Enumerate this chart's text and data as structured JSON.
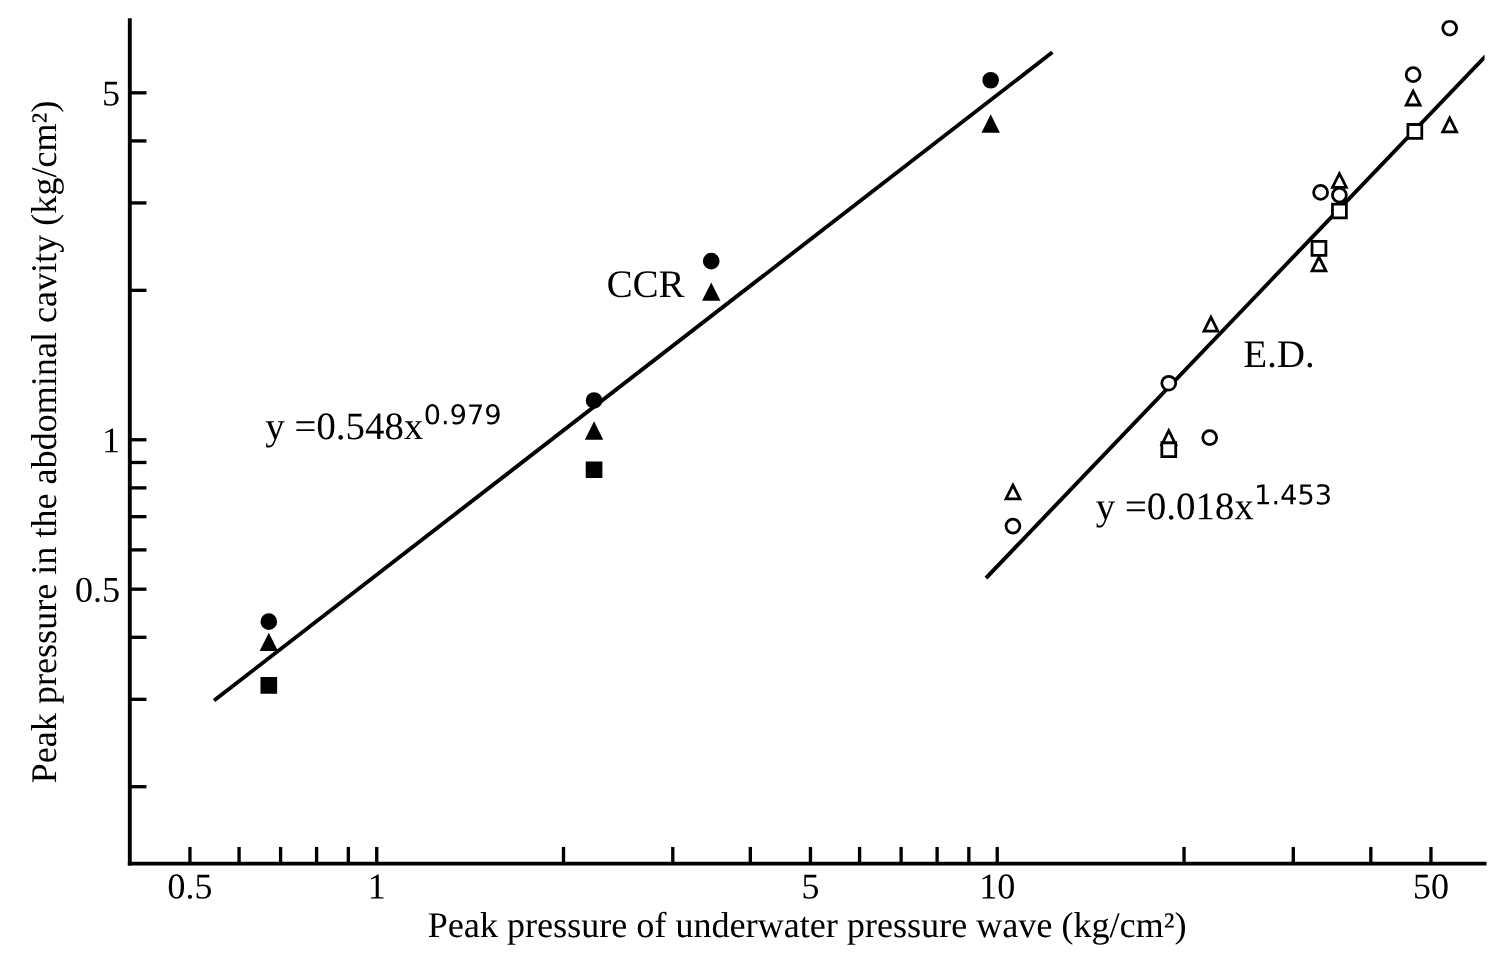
{
  "chart_data": {
    "type": "scatter",
    "xlabel": "Peak pressure of underwater pressure wave (kg/cm²)",
    "ylabel": "Peak pressure in the abdominal cavity (kg/cm²)",
    "log": "xy",
    "grid": false,
    "legend": false,
    "xlim": [
      0.4,
      61
    ],
    "ylim": [
      0.14,
      7.0
    ],
    "xticks": [
      0.5,
      {
        "value": 0.6,
        "label": null
      },
      {
        "value": 0.7,
        "label": null
      },
      {
        "value": 0.8,
        "label": null
      },
      {
        "value": 0.9,
        "label": null
      },
      1,
      {
        "value": 2,
        "label": null
      },
      {
        "value": 3,
        "label": null
      },
      {
        "value": 4,
        "label": null
      },
      5,
      {
        "value": 6,
        "label": null
      },
      {
        "value": 7,
        "label": null
      },
      {
        "value": 8,
        "label": null
      },
      {
        "value": 9,
        "label": null
      },
      10,
      {
        "value": 20,
        "label": null
      },
      {
        "value": 30,
        "label": null
      },
      {
        "value": 40,
        "label": null
      },
      50
    ],
    "yticks": [
      {
        "value": 0.2,
        "label": null
      },
      {
        "value": 0.3,
        "label": null
      },
      {
        "value": 0.4,
        "label": null
      },
      0.5,
      {
        "value": 0.6,
        "label": null
      },
      {
        "value": 0.7,
        "label": null
      },
      {
        "value": 0.8,
        "label": null
      },
      {
        "value": 0.9,
        "label": null
      },
      1,
      {
        "value": 2,
        "label": null
      },
      {
        "value": 3,
        "label": null
      },
      {
        "value": 4,
        "label": null
      },
      5
    ],
    "series": [
      {
        "marker": "circle",
        "color": "#000000",
        "x": [
          0.67,
          2.24,
          3.46,
          9.76
        ],
        "values": [
          0.43,
          1.2,
          2.29,
          5.3
        ]
      },
      {
        "marker": "triangle",
        "color": "#000000",
        "x": [
          0.67,
          2.24,
          3.46,
          9.76
        ],
        "values": [
          0.39,
          1.04,
          1.98,
          4.32
        ]
      },
      {
        "marker": "square",
        "color": "#000000",
        "x": [
          0.67,
          2.24
        ],
        "values": [
          0.32,
          0.87
        ]
      },
      {
        "type": "line",
        "marker": "none",
        "line_style": "solid",
        "color": "#000000",
        "x": [
          0.55,
          12.2
        ],
        "values": [
          0.3,
          6.0
        ]
      },
      {
        "marker": "circle",
        "color": "#ffffff",
        "x": [
          10.6,
          18.9,
          22.0,
          33.2,
          35.6,
          46.8,
          53.6
        ],
        "values": [
          0.67,
          1.3,
          1.01,
          3.15,
          3.11,
          5.44,
          6.75
        ]
      },
      {
        "marker": "triangle",
        "color": "#ffffff",
        "x": [
          10.6,
          18.9,
          22.1,
          33.0,
          35.6,
          46.8,
          53.6
        ],
        "values": [
          0.785,
          1.01,
          1.71,
          2.26,
          3.33,
          4.88,
          4.31
        ]
      },
      {
        "marker": "square",
        "color": "#ffffff",
        "x": [
          18.9,
          33.0,
          35.6,
          47.1
        ],
        "values": [
          0.955,
          2.43,
          2.89,
          4.18
        ]
      },
      {
        "type": "line",
        "marker": "none",
        "line_style": "solid",
        "color": "#000000",
        "x": [
          9.64,
          61
        ],
        "values": [
          0.53,
          5.9
        ]
      }
    ],
    "annotations": [
      "CCR",
      "y =0.548x$^{0.979}$",
      "E.D.",
      "y =0.018x$^{1.453}$"
    ]
  }
}
